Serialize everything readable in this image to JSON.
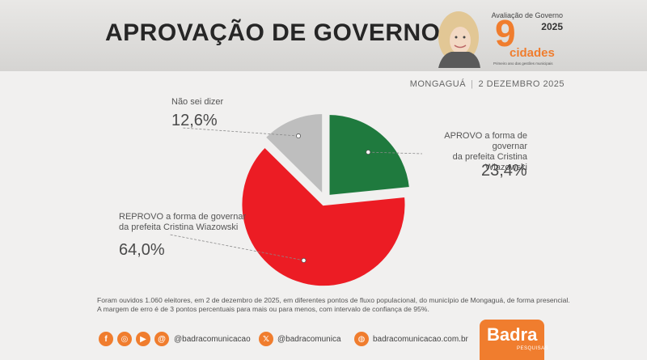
{
  "header": {
    "title": "APROVAÇÃO DE GOVERNO",
    "badge_top": "Avaliação de Governo",
    "badge_year": "2025",
    "badge_number": "9",
    "badge_word": "cidades",
    "badge_sub": "Primeiro ano das gestões municipais"
  },
  "location": {
    "city": "MONGAGUÁ",
    "date": "2 DEZEMBRO 2025"
  },
  "chart_data": {
    "type": "pie",
    "slices": [
      {
        "label": "APROVO a forma de governar da prefeita Cristina Wiazowski",
        "value": 23.4,
        "value_label": "23,4%",
        "color": "#1f7a3e"
      },
      {
        "label": "REPROVO a forma de governar da prefeita Cristina Wiazowski",
        "value": 64.0,
        "value_label": "64,0%",
        "color": "#ec1c24"
      },
      {
        "label": "Não sei dizer",
        "value": 12.6,
        "value_label": "12,6%",
        "color": "#bebebe"
      }
    ],
    "exploded": true
  },
  "labels": {
    "nao_title": "Não sei dizer",
    "aprovo_line1": "APROVO a forma de governar",
    "aprovo_line2": "da prefeita Cristina Wiazowski",
    "reprovo_line1": "REPROVO a forma de governar",
    "reprovo_line2": "da prefeita Cristina Wiazowski"
  },
  "footnote": {
    "line1": "Foram ouvidos 1.060 eleitores, em 2 de dezembro de 2025, em diferentes pontos de fluxo populacional, do município de Mongaguá, de forma presencial.",
    "line2": "A margem de erro é de 3 pontos percentuais para mais ou para menos, com intervalo de confiança de 95%."
  },
  "footer": {
    "social_handle": "@badracomunicacao",
    "twitter_handle": "@badracomunica",
    "website": "badracomunicacao.com.br",
    "icons": [
      "facebook-icon",
      "instagram-icon",
      "youtube-icon",
      "threads-icon",
      "x-icon",
      "globe-icon"
    ]
  },
  "logo": {
    "word": "Badra",
    "sub": "PESQUISAS"
  }
}
